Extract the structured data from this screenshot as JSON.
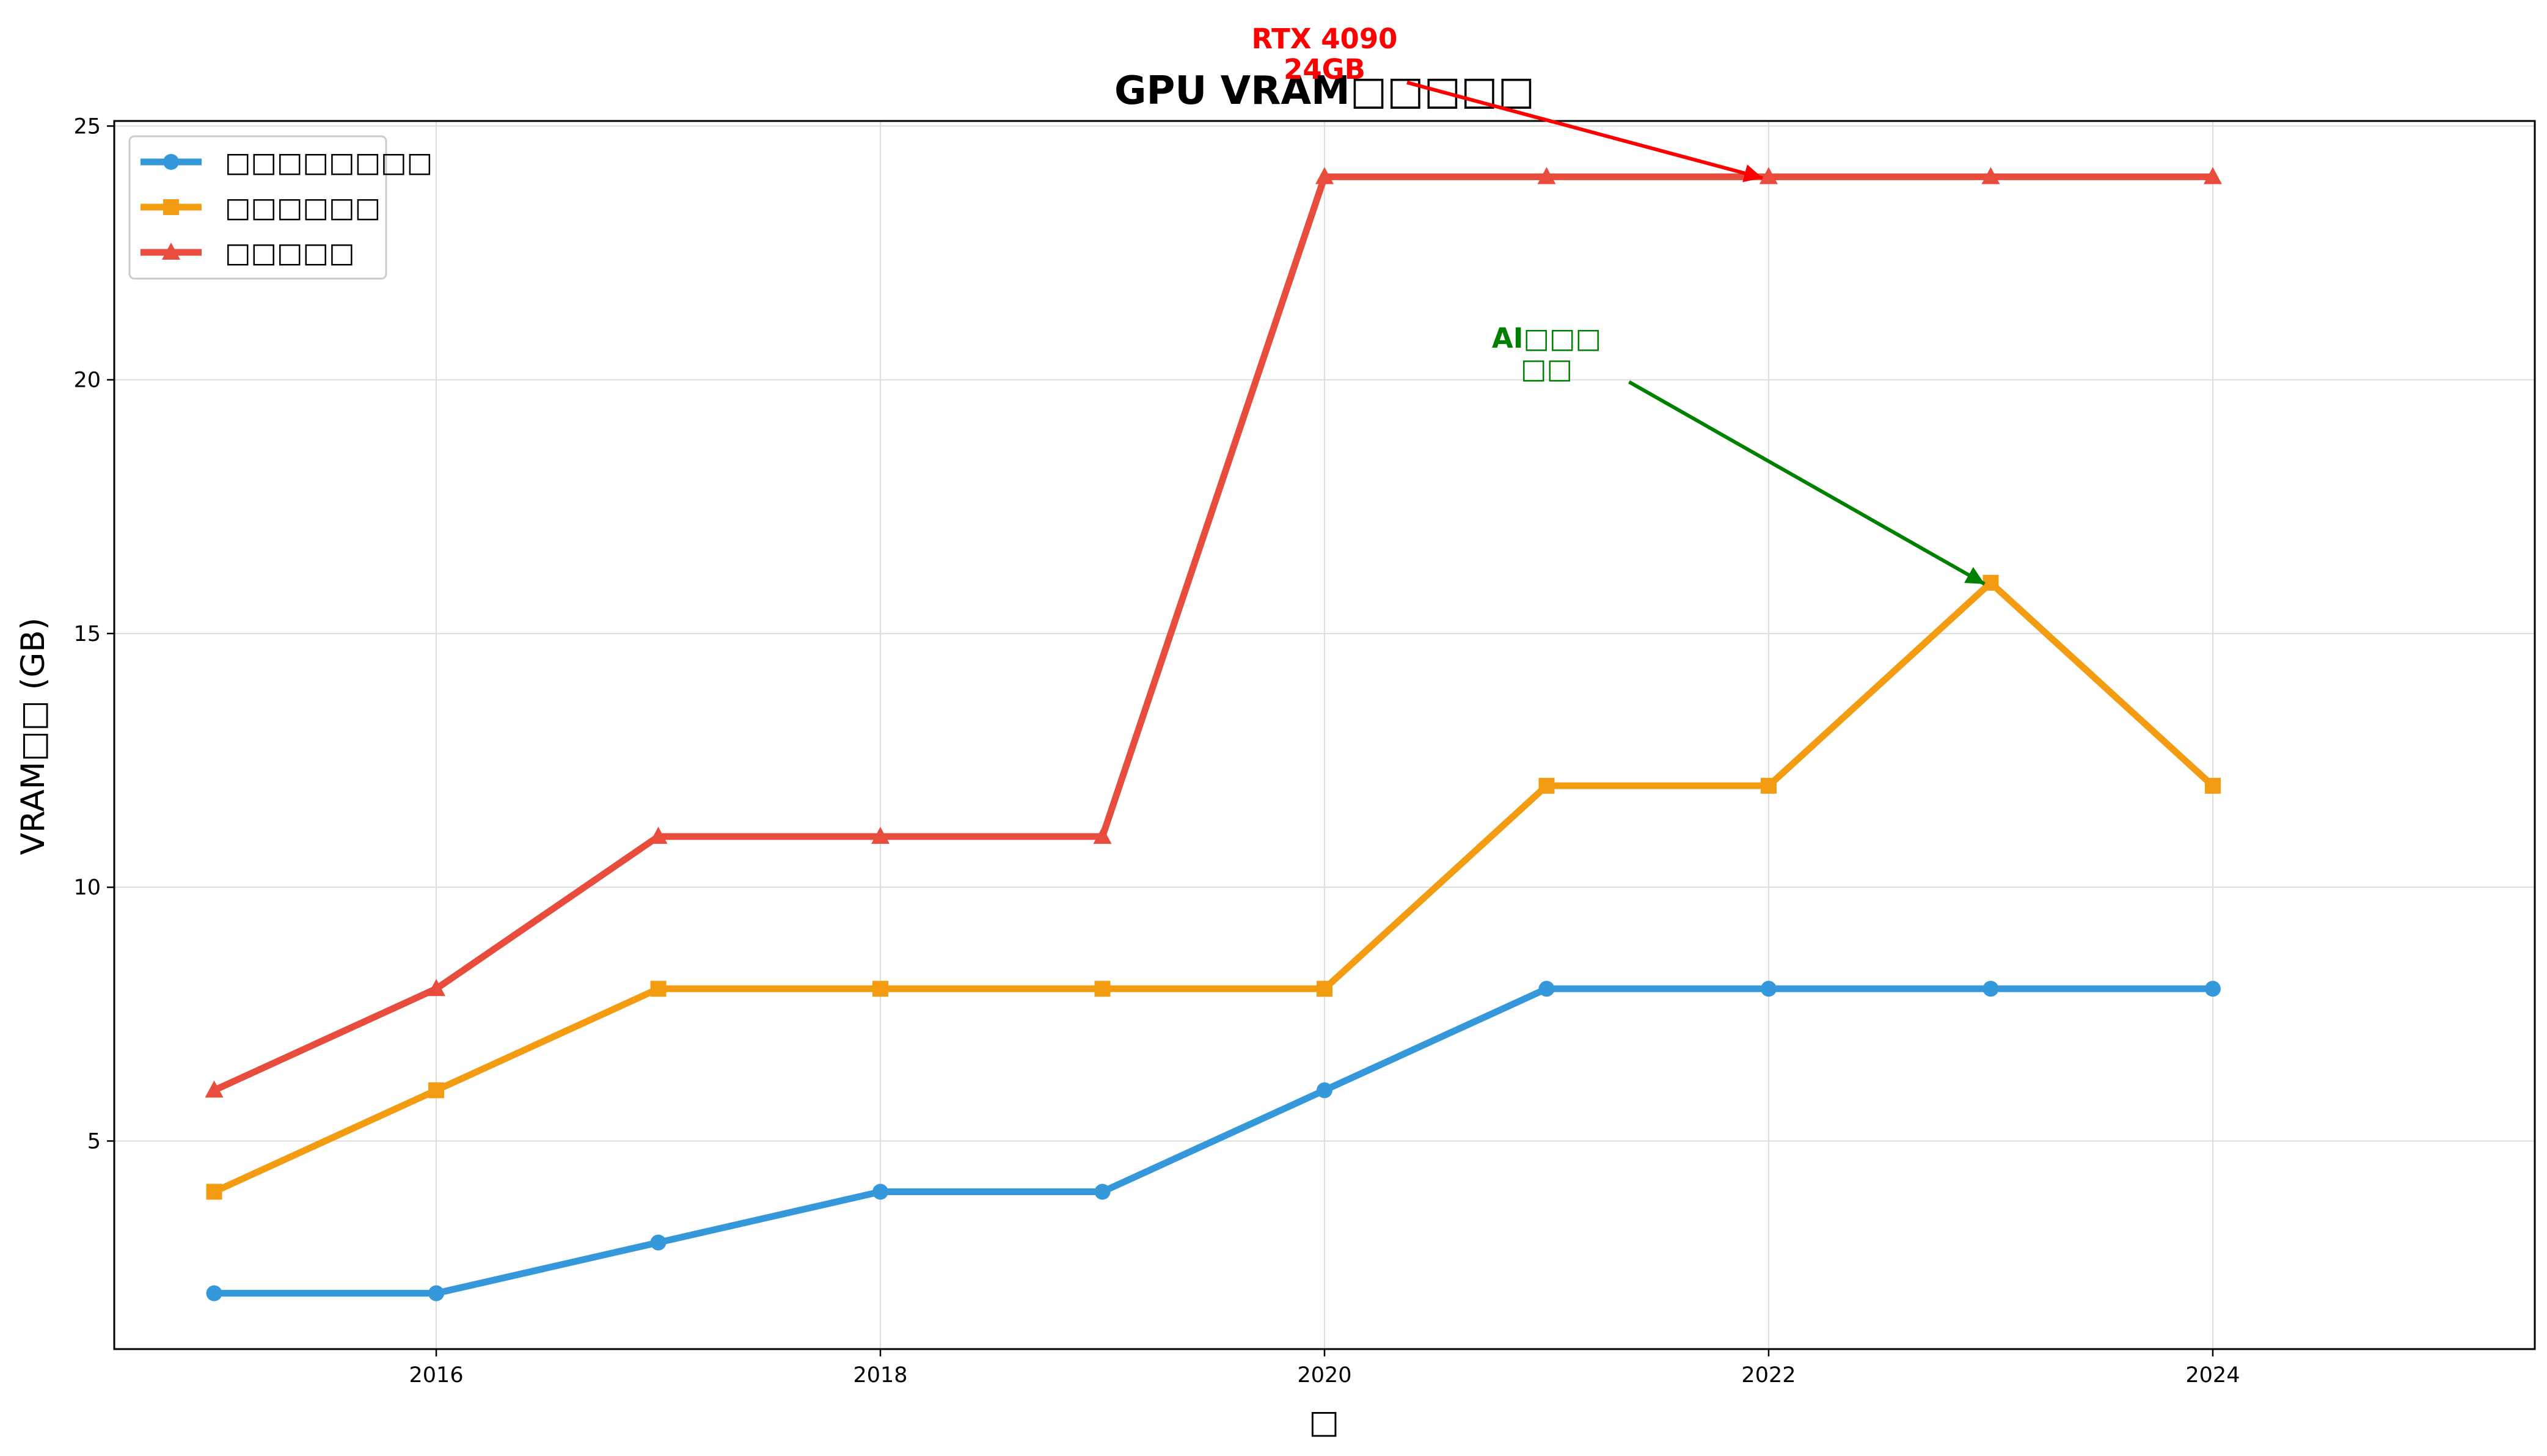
{
  "chart_data": {
    "type": "line",
    "title": "GPU VRAM□□□□□",
    "xlabel": "□",
    "ylabel": "VRAM□□ (GB)",
    "x": [
      2015,
      2016,
      2017,
      2018,
      2019,
      2020,
      2021,
      2022,
      2023,
      2024
    ],
    "xlim": [
      2014.55,
      2025.45
    ],
    "ylim": [
      0.9,
      25.1
    ],
    "xticks": [
      2016,
      2018,
      2020,
      2022,
      2024
    ],
    "yticks": [
      5,
      10,
      15,
      20,
      25
    ],
    "grid": true,
    "legend_position": "upper-left",
    "series": [
      {
        "name": "□□□□□□□□",
        "color": "#3498db",
        "marker": "circle",
        "values": [
          2,
          2,
          3,
          4,
          4,
          6,
          8,
          8,
          8,
          8
        ]
      },
      {
        "name": "□□□□□□",
        "color": "#f39c12",
        "marker": "square",
        "values": [
          4,
          6,
          8,
          8,
          8,
          8,
          12,
          12,
          16,
          12
        ]
      },
      {
        "name": "□□□□□",
        "color": "#e74c3c",
        "marker": "triangle",
        "values": [
          6,
          8,
          11,
          11,
          11,
          24,
          24,
          24,
          24,
          24
        ]
      }
    ],
    "annotations": [
      {
        "lines": [
          "RTX 4090",
          "24GB"
        ],
        "color": "#ff0000",
        "text_x": 2020,
        "text_y": 26.4,
        "target_x": 2022,
        "target_y": 24
      },
      {
        "lines": [
          "AI□□□",
          "□□"
        ],
        "color": "#008000",
        "text_x": 2021,
        "text_y": 20.5,
        "target_x": 2023,
        "target_y": 16
      }
    ]
  }
}
